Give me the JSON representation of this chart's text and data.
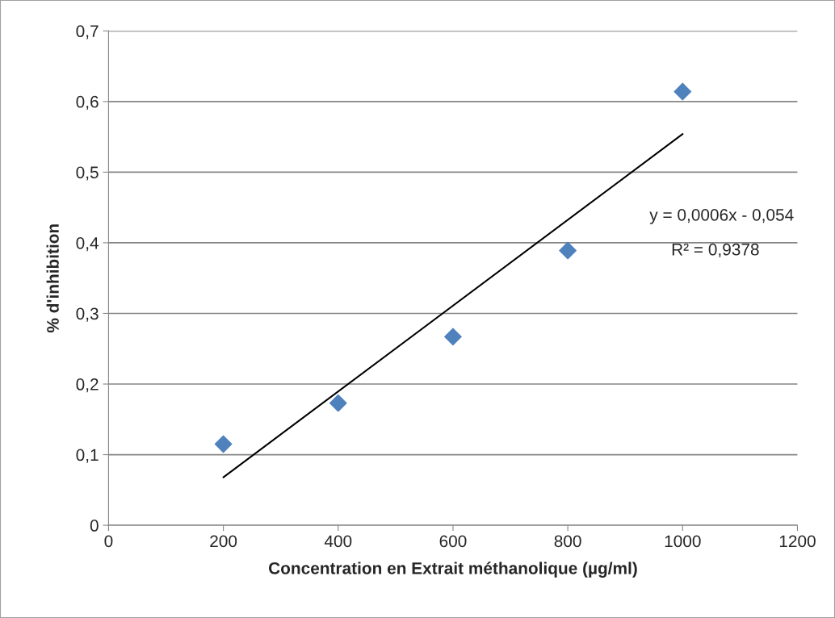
{
  "chart_data": {
    "type": "scatter",
    "xlabel": "Concentration en Extrait méthanolique (µg/ml)",
    "ylabel": "% d'inhibition",
    "x": [
      200,
      400,
      600,
      800,
      1000
    ],
    "series": [
      {
        "color": "#4f81bd",
        "marker": "diamond",
        "values": [
          0.115,
          0.173,
          0.267,
          0.389,
          0.614
        ]
      },
      {
        "type": "line",
        "color": "#000000",
        "x": [
          200,
          1000
        ],
        "values": [
          0.068,
          0.554
        ]
      }
    ],
    "annotations": [
      "y = 0,0006x - 0,054",
      "R² = 0,9378"
    ],
    "xlim": [
      0,
      1200
    ],
    "xticks": [
      0,
      200,
      400,
      600,
      800,
      1000,
      1200
    ],
    "ylim": [
      0,
      0.7
    ],
    "yticks": [
      0,
      {
        "value": 0.1,
        "label": "0,1"
      },
      {
        "value": 0.2,
        "label": "0,2"
      },
      {
        "value": 0.3,
        "label": "0,3"
      },
      {
        "value": 0.4,
        "label": "0,4"
      },
      {
        "value": 0.5,
        "label": "0,5"
      },
      {
        "value": 0.6,
        "label": "0,6"
      },
      {
        "value": 0.7,
        "label": "0,7"
      }
    ],
    "grid": "y",
    "legend": false
  }
}
